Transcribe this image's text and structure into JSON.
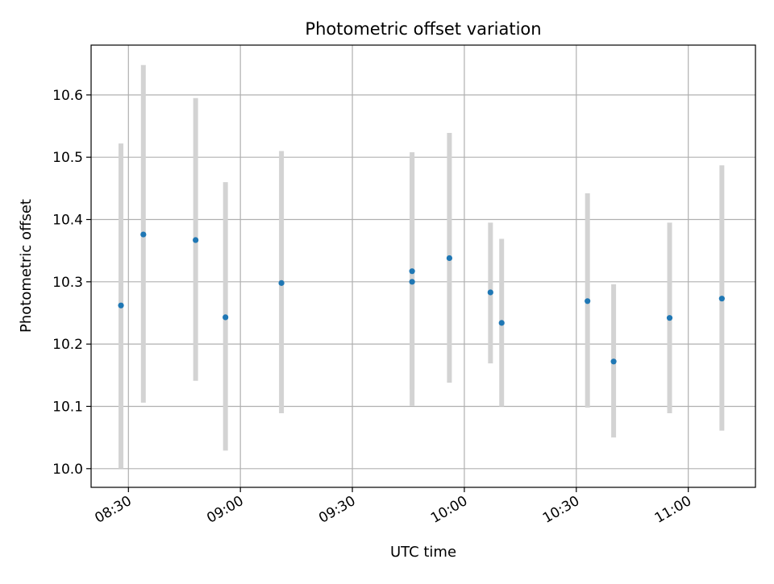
{
  "chart_data": {
    "type": "scatter",
    "title": "Photometric offset variation",
    "xlabel": "UTC time",
    "ylabel": "Photometric offset",
    "x_axis_kind": "time",
    "xlim": [
      "08:20",
      "11:18"
    ],
    "ylim": [
      9.97,
      10.68
    ],
    "xticks": [
      "08:30",
      "09:00",
      "09:30",
      "10:00",
      "10:30",
      "11:00"
    ],
    "yticks": [
      10.0,
      10.1,
      10.2,
      10.3,
      10.4,
      10.5,
      10.6
    ],
    "ytick_labels": [
      "10.0",
      "10.1",
      "10.2",
      "10.3",
      "10.4",
      "10.5",
      "10.6"
    ],
    "grid": true,
    "colors": {
      "point": "#1f77b4",
      "errorbar": "#d3d3d3",
      "grid": "#b0b0b0",
      "axes": "#000000"
    },
    "series": [
      {
        "points": [
          {
            "x": "08:28",
            "y": 10.262,
            "ylow": 10.0,
            "yhigh": 10.522
          },
          {
            "x": "08:34",
            "y": 10.376,
            "ylow": 10.106,
            "yhigh": 10.648
          },
          {
            "x": "08:48",
            "y": 10.367,
            "ylow": 10.141,
            "yhigh": 10.595
          },
          {
            "x": "08:56",
            "y": 10.243,
            "ylow": 10.029,
            "yhigh": 10.46
          },
          {
            "x": "09:11",
            "y": 10.298,
            "ylow": 10.089,
            "yhigh": 10.51
          },
          {
            "x": "09:46",
            "y": 10.317,
            "ylow": 10.127,
            "yhigh": 10.508
          },
          {
            "x": "09:46",
            "y": 10.3,
            "ylow": 10.101,
            "yhigh": 10.5
          },
          {
            "x": "09:56",
            "y": 10.338,
            "ylow": 10.138,
            "yhigh": 10.539
          },
          {
            "x": "10:07",
            "y": 10.283,
            "ylow": 10.169,
            "yhigh": 10.395
          },
          {
            "x": "10:10",
            "y": 10.234,
            "ylow": 10.1,
            "yhigh": 10.369
          },
          {
            "x": "10:33",
            "y": 10.269,
            "ylow": 10.098,
            "yhigh": 10.442
          },
          {
            "x": "10:40",
            "y": 10.172,
            "ylow": 10.05,
            "yhigh": 10.296
          },
          {
            "x": "10:55",
            "y": 10.242,
            "ylow": 10.089,
            "yhigh": 10.395
          },
          {
            "x": "11:09",
            "y": 10.273,
            "ylow": 10.061,
            "yhigh": 10.487
          }
        ]
      }
    ]
  }
}
